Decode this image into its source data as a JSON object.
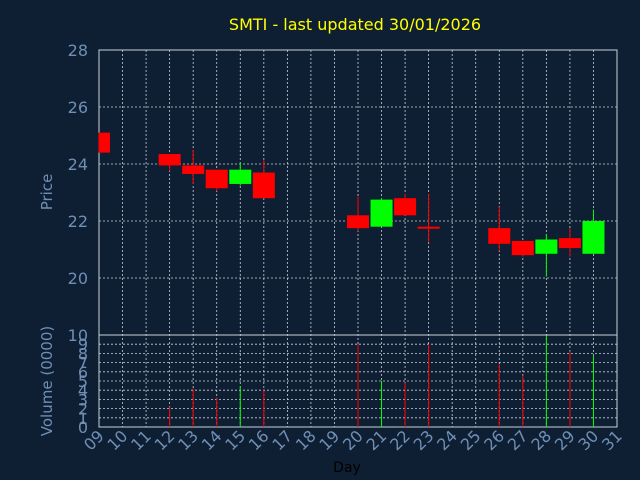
{
  "chart_data": [
    {
      "type": "candlestick",
      "title": "SMTI - last updated 30/01/2026",
      "xlabel": "",
      "ylabel": "Price",
      "ylim": [
        20,
        28
      ],
      "y_ticks": [
        "20",
        "22",
        "24",
        "26",
        "28"
      ],
      "grid": true,
      "up_color": "#00ff00",
      "down_color": "#ff0000",
      "days": [
        "09",
        "12",
        "13",
        "14",
        "15",
        "16",
        "20",
        "21",
        "22",
        "23",
        "26",
        "27",
        "28",
        "29",
        "30"
      ],
      "candles": [
        {
          "day": "09",
          "open": 25.1,
          "high": 25.1,
          "low": 24.4,
          "close": 24.4
        },
        {
          "day": "12",
          "open": 24.35,
          "high": 24.35,
          "low": 23.75,
          "close": 23.95
        },
        {
          "day": "13",
          "open": 23.95,
          "high": 24.5,
          "low": 23.3,
          "close": 23.65
        },
        {
          "day": "14",
          "open": 23.8,
          "high": 23.8,
          "low": 23.05,
          "close": 23.15
        },
        {
          "day": "15",
          "open": 23.3,
          "high": 24.05,
          "low": 23.25,
          "close": 23.8
        },
        {
          "day": "16",
          "open": 23.7,
          "high": 24.15,
          "low": 22.8,
          "close": 22.8
        },
        {
          "day": "20",
          "open": 22.2,
          "high": 22.85,
          "low": 21.65,
          "close": 21.75
        },
        {
          "day": "21",
          "open": 21.8,
          "high": 22.8,
          "low": 21.8,
          "close": 22.75
        },
        {
          "day": "22",
          "open": 22.8,
          "high": 22.95,
          "low": 22.2,
          "close": 22.2
        },
        {
          "day": "23",
          "open": 21.8,
          "high": 22.95,
          "low": 21.25,
          "close": 21.75
        },
        {
          "day": "26",
          "open": 21.75,
          "high": 22.5,
          "low": 20.95,
          "close": 21.2
        },
        {
          "day": "27",
          "open": 21.3,
          "high": 21.3,
          "low": 20.75,
          "close": 20.8
        },
        {
          "day": "28",
          "open": 20.85,
          "high": 21.55,
          "low": 20.05,
          "close": 21.35
        },
        {
          "day": "29",
          "open": 21.4,
          "high": 21.75,
          "low": 20.75,
          "close": 21.05
        },
        {
          "day": "30",
          "open": 20.85,
          "high": 22.4,
          "low": 20.85,
          "close": 22.0
        }
      ]
    },
    {
      "type": "bar",
      "xlabel": "Day",
      "ylabel": "Volume (0000)",
      "ylim": [
        0,
        10
      ],
      "y_ticks": [
        "0",
        "1",
        "2",
        "3",
        "4",
        "5",
        "6",
        "7",
        "8",
        "9",
        "10"
      ],
      "x_ticks": [
        "09",
        "10",
        "11",
        "12",
        "13",
        "14",
        "15",
        "16",
        "17",
        "18",
        "19",
        "20",
        "21",
        "22",
        "23",
        "24",
        "25",
        "26",
        "27",
        "28",
        "29",
        "30",
        "31"
      ],
      "volumes": [
        {
          "day": "12",
          "value": 2.2,
          "color": "#ff0000"
        },
        {
          "day": "13",
          "value": 4.2,
          "color": "#ff0000"
        },
        {
          "day": "14",
          "value": 3.2,
          "color": "#ff0000"
        },
        {
          "day": "15",
          "value": 4.4,
          "color": "#00ff00"
        },
        {
          "day": "16",
          "value": 4.0,
          "color": "#ff0000"
        },
        {
          "day": "20",
          "value": 9.0,
          "color": "#ff0000"
        },
        {
          "day": "21",
          "value": 5.0,
          "color": "#00ff00"
        },
        {
          "day": "22",
          "value": 4.8,
          "color": "#ff0000"
        },
        {
          "day": "23",
          "value": 9.0,
          "color": "#ff0000"
        },
        {
          "day": "26",
          "value": 6.8,
          "color": "#ff0000"
        },
        {
          "day": "27",
          "value": 5.6,
          "color": "#ff0000"
        },
        {
          "day": "28",
          "value": 9.9,
          "color": "#00ff00"
        },
        {
          "day": "29",
          "value": 8.2,
          "color": "#ff0000"
        },
        {
          "day": "30",
          "value": 7.8,
          "color": "#00ff00"
        }
      ]
    }
  ],
  "colors": {
    "background": "#0f1f33",
    "title": "#ffff00",
    "axis_text": "#6f8fb5",
    "grid": "#c8d0d8"
  }
}
